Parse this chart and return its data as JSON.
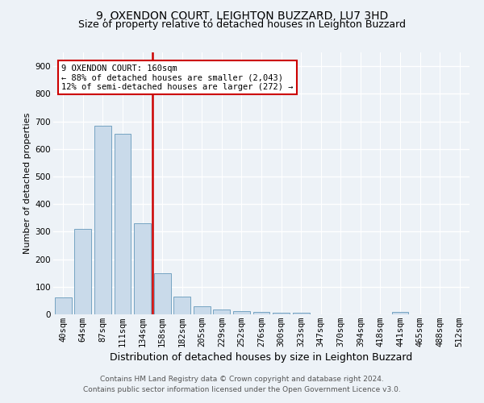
{
  "title": "9, OXENDON COURT, LEIGHTON BUZZARD, LU7 3HD",
  "subtitle": "Size of property relative to detached houses in Leighton Buzzard",
  "xlabel": "Distribution of detached houses by size in Leighton Buzzard",
  "ylabel": "Number of detached properties",
  "bar_values": [
    60,
    310,
    685,
    655,
    330,
    150,
    65,
    30,
    18,
    12,
    8,
    5,
    5,
    0,
    0,
    0,
    0,
    8,
    0,
    0,
    0
  ],
  "bar_labels": [
    "40sqm",
    "64sqm",
    "87sqm",
    "111sqm",
    "134sqm",
    "158sqm",
    "182sqm",
    "205sqm",
    "229sqm",
    "252sqm",
    "276sqm",
    "300sqm",
    "323sqm",
    "347sqm",
    "370sqm",
    "394sqm",
    "418sqm",
    "441sqm",
    "465sqm",
    "488sqm",
    "512sqm"
  ],
  "bar_color": "#c9daea",
  "bar_edge_color": "#6699bb",
  "red_line_index": 5,
  "red_line_color": "#cc0000",
  "annotation_line1": "9 OXENDON COURT: 160sqm",
  "annotation_line2": "← 88% of detached houses are smaller (2,043)",
  "annotation_line3": "12% of semi-detached houses are larger (272) →",
  "annotation_box_facecolor": "#ffffff",
  "annotation_box_edgecolor": "#cc0000",
  "ylim": [
    0,
    950
  ],
  "yticks": [
    0,
    100,
    200,
    300,
    400,
    500,
    600,
    700,
    800,
    900
  ],
  "footer_line1": "Contains HM Land Registry data © Crown copyright and database right 2024.",
  "footer_line2": "Contains public sector information licensed under the Open Government Licence v3.0.",
  "bg_color": "#edf2f7",
  "grid_color": "#ffffff",
  "title_fontsize": 10,
  "subtitle_fontsize": 9,
  "ylabel_fontsize": 8,
  "xlabel_fontsize": 9,
  "tick_fontsize": 7.5,
  "annotation_fontsize": 7.5,
  "footer_fontsize": 6.5
}
